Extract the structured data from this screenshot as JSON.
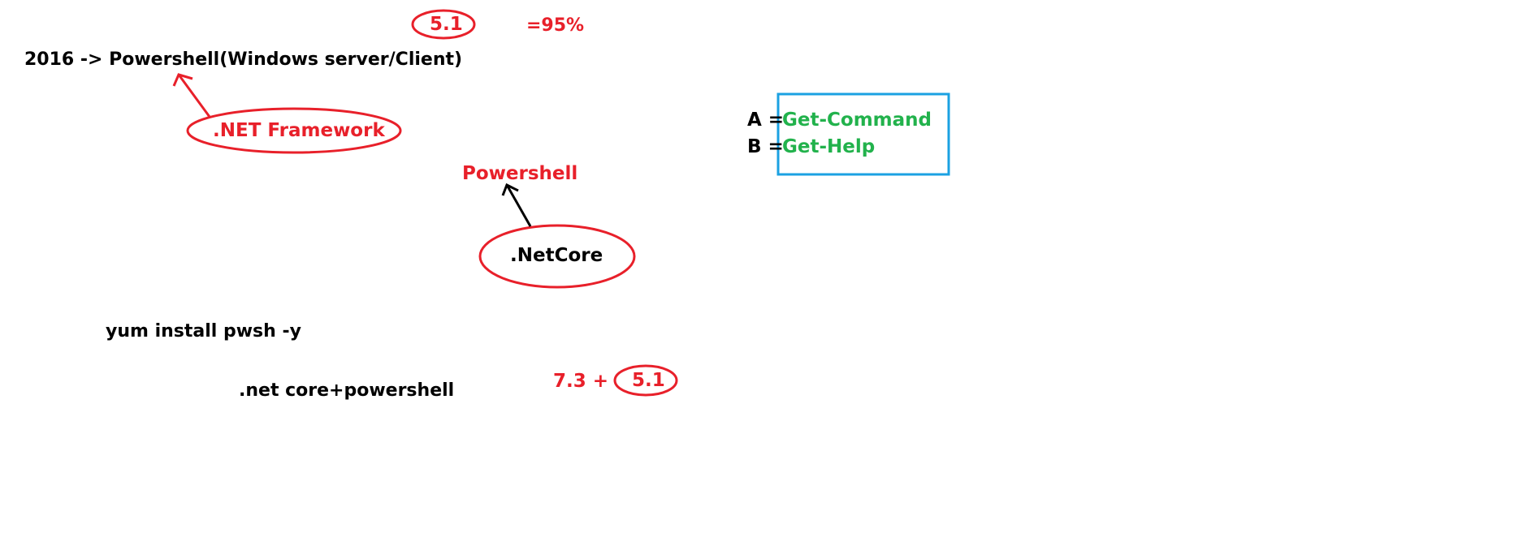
{
  "colors": {
    "red": "#e8202a",
    "green": "#22b24c",
    "blue": "#1ba1e2",
    "black": "#000000"
  },
  "top": {
    "version_circled": "5.1",
    "percent": "=95%"
  },
  "line1": {
    "text": "2016 -> Powershell(Windows server/Client)"
  },
  "framework": {
    "label": ".NET Framework"
  },
  "powershell": {
    "label": "Powershell"
  },
  "netcore": {
    "label": ".NetCore"
  },
  "box": {
    "a_prefix": "A =",
    "a_value": "Get-Command",
    "b_prefix": "B =",
    "b_value": "Get-Help"
  },
  "install": {
    "command": "yum install pwsh -y"
  },
  "combo": {
    "text": ".net core+powershell"
  },
  "versions": {
    "left": "7.3 +",
    "right_circled": "5.1"
  }
}
